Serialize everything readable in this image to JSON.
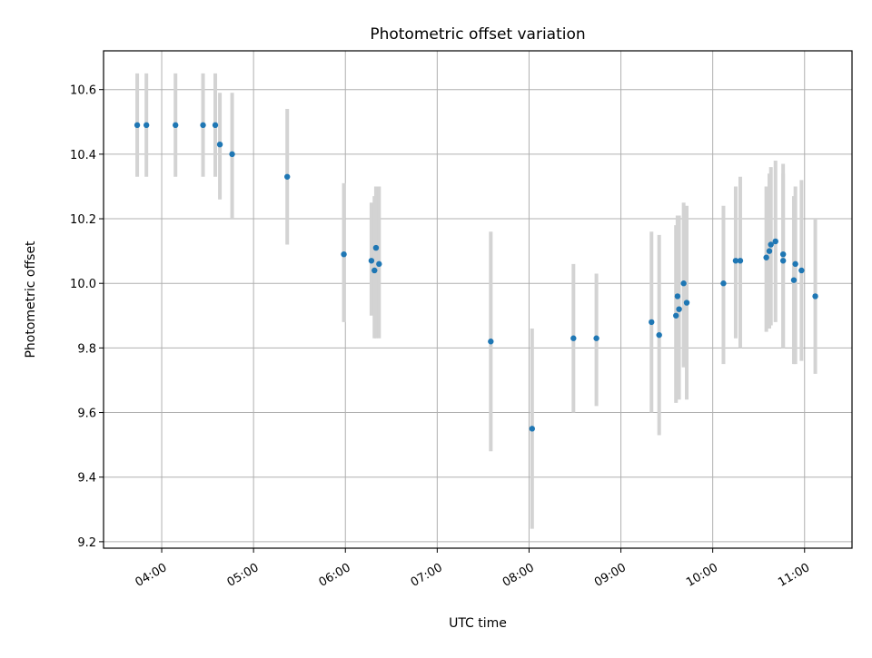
{
  "chart_data": {
    "type": "scatter",
    "title": "Photometric offset variation",
    "xlabel": "UTC time",
    "ylabel": "Photometric offset",
    "xlim": [
      "03:22",
      "11:31"
    ],
    "ylim": [
      9.18,
      10.72
    ],
    "x_ticks": [
      "04:00",
      "05:00",
      "06:00",
      "07:00",
      "08:00",
      "09:00",
      "10:00",
      "11:00"
    ],
    "y_ticks": [
      "9.2",
      "9.4",
      "9.6",
      "9.8",
      "10.0",
      "10.2",
      "10.4",
      "10.6"
    ],
    "grid": true,
    "colors": {
      "points": "#1f77b4",
      "error_bars": "#d3d3d3",
      "grid": "#b0b0b0"
    },
    "series": [
      {
        "points": [
          {
            "x": "03:44",
            "y": 10.49,
            "lo": 10.33,
            "hi": 10.65
          },
          {
            "x": "03:50",
            "y": 10.49,
            "lo": 10.33,
            "hi": 10.65
          },
          {
            "x": "04:09",
            "y": 10.49,
            "lo": 10.33,
            "hi": 10.65
          },
          {
            "x": "04:27",
            "y": 10.49,
            "lo": 10.33,
            "hi": 10.65
          },
          {
            "x": "04:35",
            "y": 10.49,
            "lo": 10.33,
            "hi": 10.65
          },
          {
            "x": "04:38",
            "y": 10.43,
            "lo": 10.26,
            "hi": 10.59
          },
          {
            "x": "04:46",
            "y": 10.4,
            "lo": 10.2,
            "hi": 10.59
          },
          {
            "x": "05:22",
            "y": 10.33,
            "lo": 10.12,
            "hi": 10.54
          },
          {
            "x": "05:59",
            "y": 10.09,
            "lo": 9.88,
            "hi": 10.31
          },
          {
            "x": "06:17",
            "y": 10.07,
            "lo": 9.9,
            "hi": 10.25
          },
          {
            "x": "06:19",
            "y": 10.04,
            "lo": 9.83,
            "hi": 10.27
          },
          {
            "x": "06:20",
            "y": 10.11,
            "lo": 9.83,
            "hi": 10.3
          },
          {
            "x": "06:22",
            "y": 10.06,
            "lo": 9.83,
            "hi": 10.3
          },
          {
            "x": "07:35",
            "y": 9.82,
            "lo": 9.48,
            "hi": 10.16
          },
          {
            "x": "08:02",
            "y": 9.55,
            "lo": 9.24,
            "hi": 9.86
          },
          {
            "x": "08:29",
            "y": 9.83,
            "lo": 9.6,
            "hi": 10.06
          },
          {
            "x": "08:44",
            "y": 9.83,
            "lo": 9.62,
            "hi": 10.03
          },
          {
            "x": "09:20",
            "y": 9.88,
            "lo": 9.6,
            "hi": 10.16
          },
          {
            "x": "09:25",
            "y": 9.84,
            "lo": 9.53,
            "hi": 10.15
          },
          {
            "x": "09:36",
            "y": 9.9,
            "lo": 9.63,
            "hi": 10.18
          },
          {
            "x": "09:37",
            "y": 9.96,
            "lo": 9.68,
            "hi": 10.21
          },
          {
            "x": "09:38",
            "y": 9.92,
            "lo": 9.64,
            "hi": 10.21
          },
          {
            "x": "09:41",
            "y": 10.0,
            "lo": 9.74,
            "hi": 10.25
          },
          {
            "x": "09:43",
            "y": 9.94,
            "lo": 9.64,
            "hi": 10.24
          },
          {
            "x": "10:07",
            "y": 10.0,
            "lo": 9.75,
            "hi": 10.24
          },
          {
            "x": "10:15",
            "y": 10.07,
            "lo": 9.83,
            "hi": 10.3
          },
          {
            "x": "10:18",
            "y": 10.07,
            "lo": 9.8,
            "hi": 10.33
          },
          {
            "x": "10:35",
            "y": 10.08,
            "lo": 9.85,
            "hi": 10.3
          },
          {
            "x": "10:37",
            "y": 10.1,
            "lo": 9.86,
            "hi": 10.34
          },
          {
            "x": "10:38",
            "y": 10.12,
            "lo": 9.87,
            "hi": 10.36
          },
          {
            "x": "10:41",
            "y": 10.13,
            "lo": 9.88,
            "hi": 10.38
          },
          {
            "x": "10:46",
            "y": 10.09,
            "lo": 9.8,
            "hi": 10.37
          },
          {
            "x": "10:46",
            "y": 10.07,
            "lo": 9.8,
            "hi": 10.34
          },
          {
            "x": "10:53",
            "y": 10.01,
            "lo": 9.75,
            "hi": 10.27
          },
          {
            "x": "10:54",
            "y": 10.06,
            "lo": 9.75,
            "hi": 10.3
          },
          {
            "x": "10:58",
            "y": 10.04,
            "lo": 9.76,
            "hi": 10.32
          },
          {
            "x": "11:07",
            "y": 9.96,
            "lo": 9.72,
            "hi": 10.2
          }
        ]
      }
    ]
  }
}
